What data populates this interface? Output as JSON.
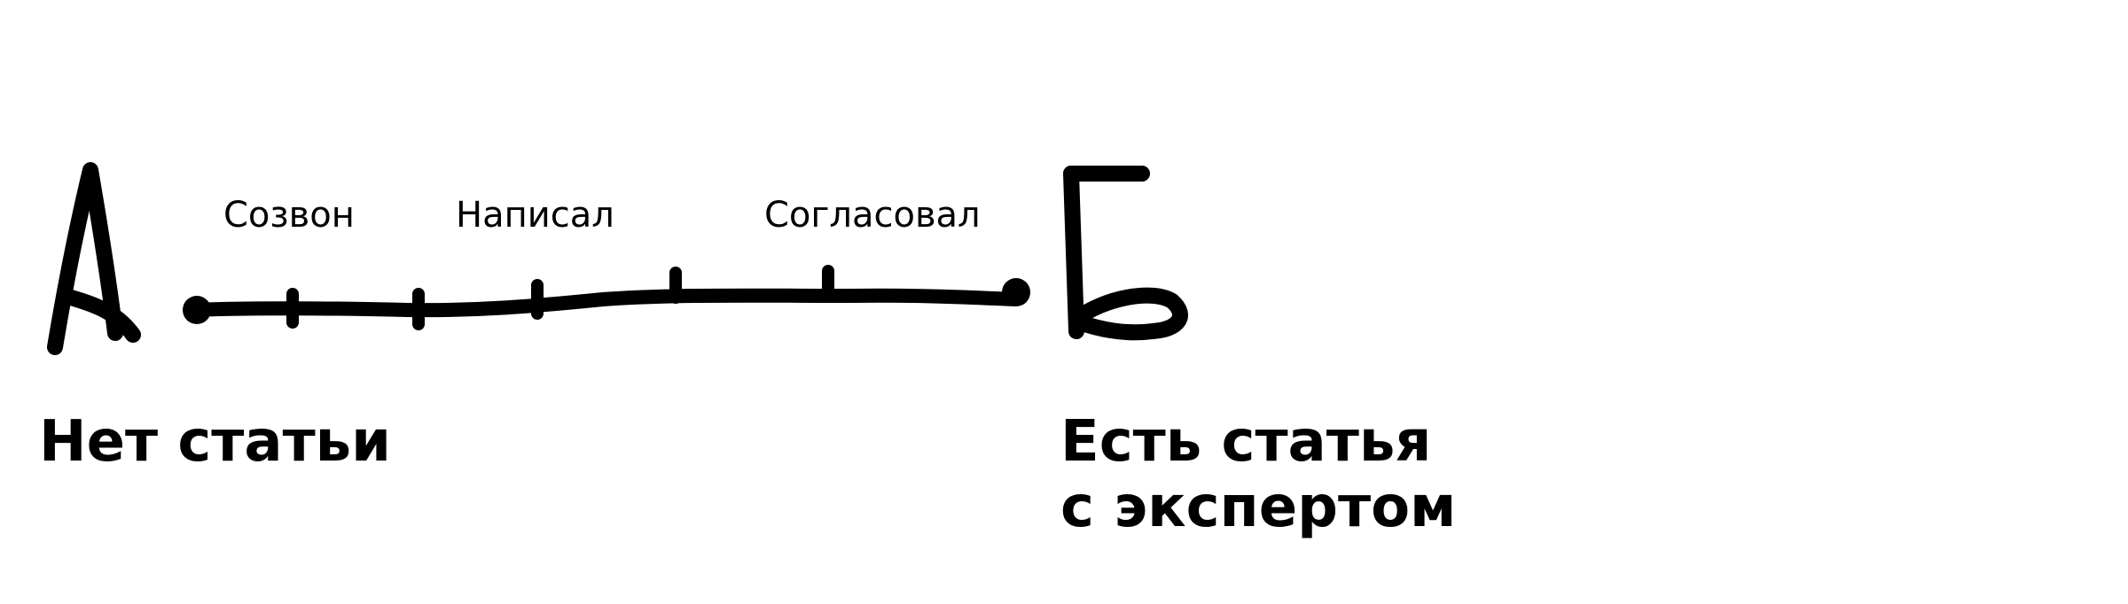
{
  "diagram": {
    "start_point": {
      "letter": "А",
      "caption": "Нет статьи"
    },
    "end_point": {
      "letter": "Б",
      "caption_line1": "Есть статья",
      "caption_line2": "с экспертом"
    },
    "steps": [
      "Созвон",
      "Написал",
      "Согласовал"
    ],
    "colors": {
      "ink": "#000000",
      "background": "#ffffff"
    }
  }
}
